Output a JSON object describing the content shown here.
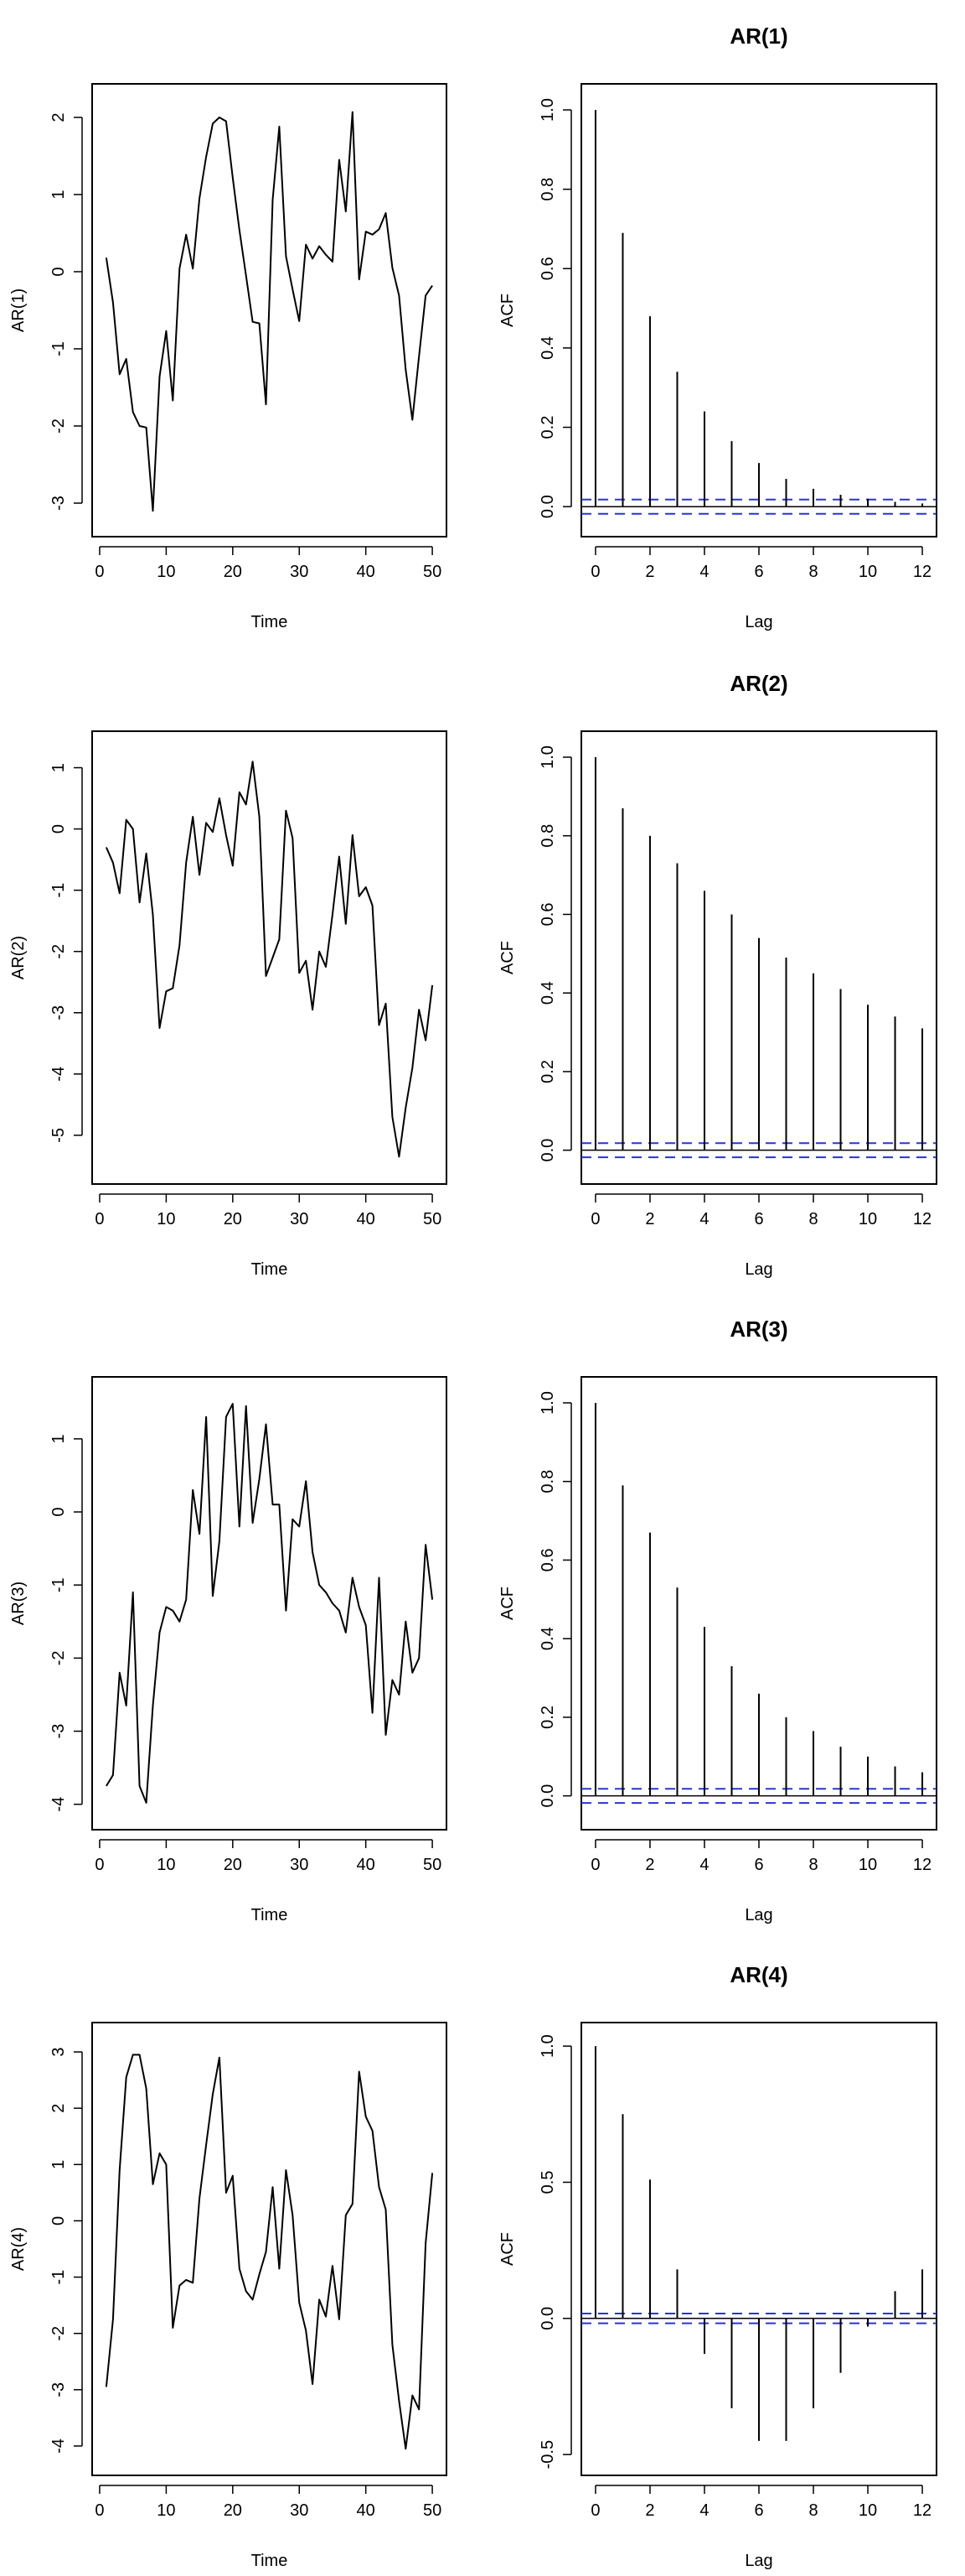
{
  "chart_data": [
    {
      "type": "line",
      "title": "",
      "xlabel": "Time",
      "ylabel": "AR(1)",
      "xlim": [
        1,
        50
      ],
      "ylim": [
        -3.2,
        2.2
      ],
      "xticks": [
        "0",
        "10",
        "20",
        "30",
        "40",
        "50"
      ],
      "yticks": [
        "-3",
        "-2",
        "-1",
        "0",
        "1",
        "2"
      ],
      "x": [
        1,
        2,
        3,
        4,
        5,
        6,
        7,
        8,
        9,
        10,
        11,
        12,
        13,
        14,
        15,
        16,
        17,
        18,
        19,
        20,
        21,
        22,
        23,
        24,
        25,
        26,
        27,
        28,
        29,
        30,
        31,
        32,
        33,
        34,
        35,
        36,
        37,
        38,
        39,
        40,
        41,
        42,
        43,
        44,
        45,
        46,
        47,
        48,
        49,
        50
      ],
      "values": [
        0.18,
        -0.4,
        -1.33,
        -1.13,
        -1.82,
        -2.0,
        -2.02,
        -3.1,
        -1.36,
        -0.77,
        -1.67,
        0.04,
        0.48,
        0.04,
        0.95,
        1.49,
        1.92,
        2.0,
        1.95,
        1.22,
        0.54,
        -0.05,
        -0.65,
        -0.67,
        -1.72,
        0.93,
        1.88,
        0.2,
        -0.23,
        -0.64,
        0.35,
        0.17,
        0.33,
        0.22,
        0.13,
        1.45,
        0.78,
        2.07,
        -0.1,
        0.52,
        0.48,
        0.55,
        0.76,
        0.05,
        -0.31,
        -1.27,
        -1.92,
        -1.1,
        -0.31,
        -0.18
      ]
    },
    {
      "type": "bar",
      "title": "AR(1)",
      "xlabel": "Lag",
      "ylabel": "ACF",
      "xlim": [
        0,
        12
      ],
      "ylim": [
        -0.03,
        1.02
      ],
      "xticks": [
        "0",
        "2",
        "4",
        "6",
        "8",
        "10",
        "12"
      ],
      "yticks": [
        "0.0",
        "0.2",
        "0.4",
        "0.6",
        "0.8",
        "1.0"
      ],
      "lags": [
        0,
        1,
        2,
        3,
        4,
        5,
        6,
        7,
        8,
        9,
        10,
        11,
        12
      ],
      "values": [
        1.0,
        0.69,
        0.48,
        0.34,
        0.24,
        0.165,
        0.11,
        0.07,
        0.045,
        0.03,
        0.02,
        0.012,
        0.008
      ],
      "confidence_bound": 0.018
    },
    {
      "type": "line",
      "title": "",
      "xlabel": "Time",
      "ylabel": "AR(2)",
      "xlim": [
        1,
        50
      ],
      "ylim": [
        -5.5,
        1.3
      ],
      "xticks": [
        "0",
        "10",
        "20",
        "30",
        "40",
        "50"
      ],
      "yticks": [
        "-5",
        "-4",
        "-3",
        "-2",
        "-1",
        "0",
        "1"
      ],
      "x": [
        1,
        2,
        3,
        4,
        5,
        6,
        7,
        8,
        9,
        10,
        11,
        12,
        13,
        14,
        15,
        16,
        17,
        18,
        19,
        20,
        21,
        22,
        23,
        24,
        25,
        26,
        27,
        28,
        29,
        30,
        31,
        32,
        33,
        34,
        35,
        36,
        37,
        38,
        39,
        40,
        41,
        42,
        43,
        44,
        45,
        46,
        47,
        48,
        49,
        50
      ],
      "values": [
        -0.3,
        -0.55,
        -1.05,
        0.15,
        0.0,
        -1.2,
        -0.4,
        -1.4,
        -3.25,
        -2.65,
        -2.6,
        -1.9,
        -0.55,
        0.2,
        -0.75,
        0.1,
        -0.05,
        0.5,
        -0.1,
        -0.6,
        0.6,
        0.4,
        1.1,
        0.2,
        -2.4,
        -2.1,
        -1.8,
        0.3,
        -0.15,
        -2.35,
        -2.15,
        -2.95,
        -2.0,
        -2.25,
        -1.4,
        -0.45,
        -1.55,
        -0.1,
        -1.1,
        -0.95,
        -1.25,
        -3.2,
        -2.85,
        -4.7,
        -5.35,
        -4.55,
        -3.9,
        -2.95,
        -3.45,
        -2.55
      ]
    },
    {
      "type": "bar",
      "title": "AR(2)",
      "xlabel": "Lag",
      "ylabel": "ACF",
      "xlim": [
        0,
        12
      ],
      "ylim": [
        -0.04,
        1.02
      ],
      "xticks": [
        "0",
        "2",
        "4",
        "6",
        "8",
        "10",
        "12"
      ],
      "yticks": [
        "0.0",
        "0.2",
        "0.4",
        "0.6",
        "0.8",
        "1.0"
      ],
      "lags": [
        0,
        1,
        2,
        3,
        4,
        5,
        6,
        7,
        8,
        9,
        10,
        11,
        12
      ],
      "values": [
        1.0,
        0.87,
        0.8,
        0.73,
        0.66,
        0.6,
        0.54,
        0.49,
        0.45,
        0.41,
        0.37,
        0.34,
        0.31
      ],
      "confidence_bound": 0.018
    },
    {
      "type": "line",
      "title": "",
      "xlabel": "Time",
      "ylabel": "AR(3)",
      "xlim": [
        1,
        50
      ],
      "ylim": [
        -4.1,
        1.6
      ],
      "xticks": [
        "0",
        "10",
        "20",
        "30",
        "40",
        "50"
      ],
      "yticks": [
        "-4",
        "-3",
        "-2",
        "-1",
        "0",
        "1"
      ],
      "x": [
        1,
        2,
        3,
        4,
        5,
        6,
        7,
        8,
        9,
        10,
        11,
        12,
        13,
        14,
        15,
        16,
        17,
        18,
        19,
        20,
        21,
        22,
        23,
        24,
        25,
        26,
        27,
        28,
        29,
        30,
        31,
        32,
        33,
        34,
        35,
        36,
        37,
        38,
        39,
        40,
        41,
        42,
        43,
        44,
        45,
        46,
        47,
        48,
        49,
        50
      ],
      "values": [
        -3.75,
        -3.6,
        -2.2,
        -2.65,
        -1.1,
        -3.75,
        -3.98,
        -2.65,
        -1.65,
        -1.3,
        -1.35,
        -1.5,
        -1.2,
        0.3,
        -0.3,
        1.3,
        -1.15,
        -0.4,
        1.3,
        1.48,
        -0.2,
        1.45,
        -0.15,
        0.45,
        1.2,
        0.1,
        0.1,
        -1.35,
        -0.1,
        -0.2,
        0.42,
        -0.55,
        -1.0,
        -1.1,
        -1.25,
        -1.35,
        -1.65,
        -0.9,
        -1.3,
        -1.55,
        -2.75,
        -0.9,
        -3.05,
        -2.3,
        -2.5,
        -1.5,
        -2.2,
        -2.0,
        -0.45,
        -1.2
      ]
    },
    {
      "type": "bar",
      "title": "AR(3)",
      "xlabel": "Lag",
      "ylabel": "ACF",
      "xlim": [
        0,
        12
      ],
      "ylim": [
        -0.04,
        1.02
      ],
      "xticks": [
        "0",
        "2",
        "4",
        "6",
        "8",
        "10",
        "12"
      ],
      "yticks": [
        "0.0",
        "0.2",
        "0.4",
        "0.6",
        "0.8",
        "1.0"
      ],
      "lags": [
        0,
        1,
        2,
        3,
        4,
        5,
        6,
        7,
        8,
        9,
        10,
        11,
        12
      ],
      "values": [
        1.0,
        0.79,
        0.67,
        0.53,
        0.43,
        0.33,
        0.26,
        0.2,
        0.165,
        0.125,
        0.1,
        0.075,
        0.06
      ],
      "confidence_bound": 0.018
    },
    {
      "type": "line",
      "title": "",
      "xlabel": "Time",
      "ylabel": "AR(4)",
      "xlim": [
        1,
        50
      ],
      "ylim": [
        -4.2,
        3.2
      ],
      "xticks": [
        "0",
        "10",
        "20",
        "30",
        "40",
        "50"
      ],
      "yticks": [
        "-4",
        "-3",
        "-2",
        "-1",
        "0",
        "1",
        "2",
        "3"
      ],
      "x": [
        1,
        2,
        3,
        4,
        5,
        6,
        7,
        8,
        9,
        10,
        11,
        12,
        13,
        14,
        15,
        16,
        17,
        18,
        19,
        20,
        21,
        22,
        23,
        24,
        25,
        26,
        27,
        28,
        29,
        30,
        31,
        32,
        33,
        34,
        35,
        36,
        37,
        38,
        39,
        40,
        41,
        42,
        43,
        44,
        45,
        46,
        47,
        48,
        49,
        50
      ],
      "values": [
        -2.95,
        -1.75,
        0.9,
        2.55,
        2.95,
        2.95,
        2.35,
        0.65,
        1.2,
        1.0,
        -1.9,
        -1.15,
        -1.05,
        -1.1,
        0.4,
        1.35,
        2.25,
        2.9,
        0.5,
        0.8,
        -0.85,
        -1.25,
        -1.4,
        -0.95,
        -0.55,
        0.6,
        -0.85,
        0.9,
        0.1,
        -1.45,
        -1.95,
        -2.9,
        -1.4,
        -1.7,
        -0.8,
        -1.75,
        0.1,
        0.3,
        2.65,
        1.85,
        1.6,
        0.6,
        0.2,
        -2.2,
        -3.2,
        -4.05,
        -3.1,
        -3.35,
        -0.4,
        0.85
      ]
    },
    {
      "type": "bar",
      "title": "AR(4)",
      "xlabel": "Lag",
      "ylabel": "ACF",
      "xlim": [
        0,
        12
      ],
      "ylim": [
        -0.51,
        1.02
      ],
      "xticks": [
        "0",
        "2",
        "4",
        "6",
        "8",
        "10",
        "12"
      ],
      "yticks": [
        "-0.5",
        "0.0",
        "0.5",
        "1.0"
      ],
      "lags": [
        0,
        1,
        2,
        3,
        4,
        5,
        6,
        7,
        8,
        9,
        10,
        11,
        12
      ],
      "values": [
        1.0,
        0.75,
        0.51,
        0.18,
        -0.13,
        -0.33,
        -0.45,
        -0.45,
        -0.33,
        -0.2,
        -0.03,
        0.1,
        0.18
      ],
      "confidence_bound": 0.018
    }
  ]
}
